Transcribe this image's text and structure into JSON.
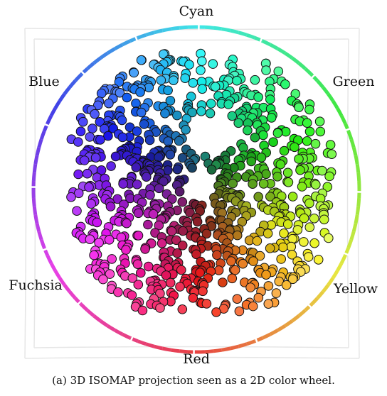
{
  "figure": {
    "caption": "(a) 3D ISOMAP projection seen as a 2D color wheel.",
    "hue_labels": {
      "cyan": "Cyan",
      "green": "Green",
      "yellow": "Yellow",
      "red": "Red",
      "fuchsia": "Fuchsia",
      "blue": "Blue"
    },
    "colors": {
      "point_stroke": "#111111",
      "ring_segments": [
        "#38d9e3",
        "#58e0b8",
        "#5be46b",
        "#84e74e",
        "#bde84e",
        "#e2d84a",
        "#e8a94a",
        "#e8814a",
        "#e35350",
        "#e3506d",
        "#e350a3",
        "#d650d8",
        "#a24fe2",
        "#6e55e6",
        "#4f6de8",
        "#4fa0e8"
      ]
    },
    "legend_icon": "color-wheel-ring"
  }
}
